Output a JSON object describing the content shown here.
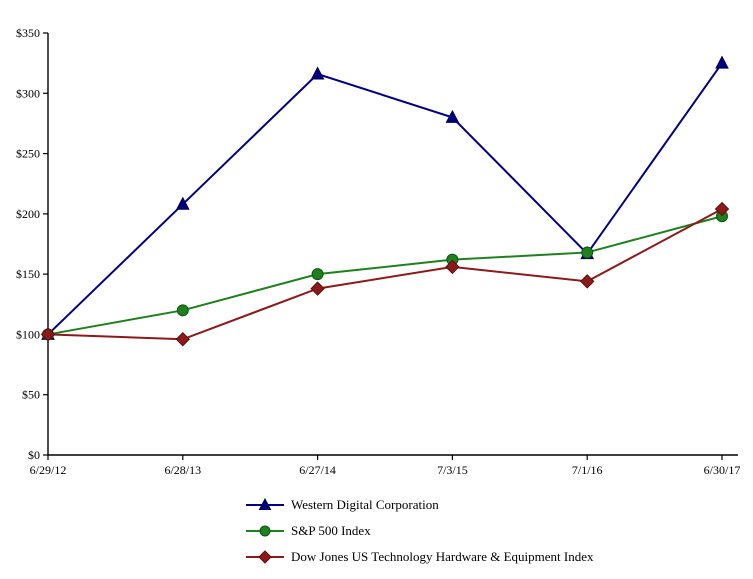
{
  "chart_data": {
    "type": "line",
    "title": "",
    "x": [
      "6/29/12",
      "6/28/13",
      "6/27/14",
      "7/3/15",
      "7/1/16",
      "6/30/17"
    ],
    "series": [
      {
        "name": "Western Digital Corporation",
        "marker": "triangle",
        "color": "#000080",
        "marker_stroke": "#00004d",
        "values": [
          100,
          208,
          316,
          280,
          167,
          325
        ]
      },
      {
        "name": "S&P 500 Index",
        "marker": "circle",
        "color": "#1F801F",
        "marker_stroke": "#0F5210",
        "values": [
          100,
          120,
          150,
          162,
          168,
          198
        ]
      },
      {
        "name": "Dow Jones US Technology Hardware & Equipment Index",
        "marker": "diamond",
        "color": "#8B1A1A",
        "marker_stroke": "#5C1010",
        "values": [
          100,
          96,
          138,
          156,
          144,
          204
        ]
      }
    ],
    "ylim": [
      0,
      350
    ],
    "ytick_step": 50,
    "ytick_labels": [
      "$0",
      "$50",
      "$100",
      "$150",
      "$200",
      "$250",
      "$300",
      "$350"
    ],
    "grid": false,
    "legend_position": "bottom",
    "axis_color": "#000000"
  }
}
